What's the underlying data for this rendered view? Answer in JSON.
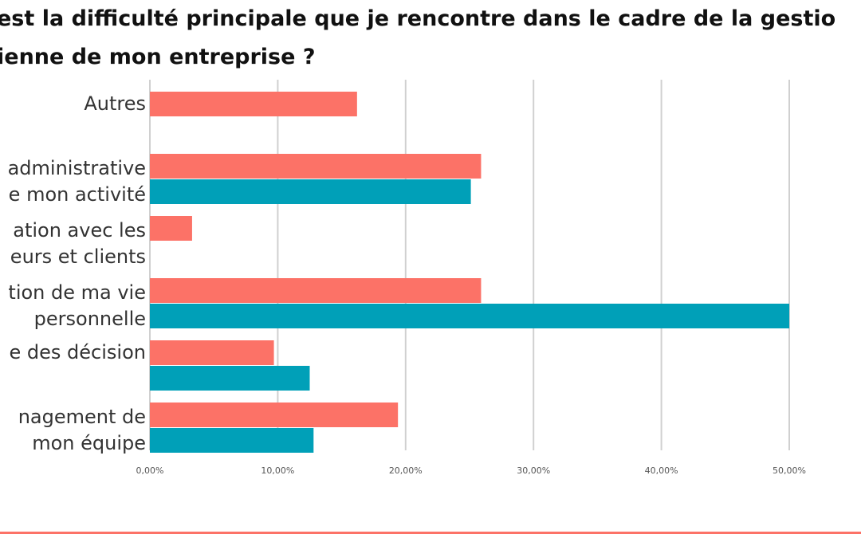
{
  "chart_data": {
    "type": "bar",
    "orientation": "horizontal",
    "title_lines": [
      "est la difficulté principale que je rencontre dans le cadre de la gestio",
      "ienne de mon entreprise ?"
    ],
    "categories": [
      {
        "lines": [
          "Autres"
        ]
      },
      {
        "lines": [
          "administrative",
          "e  mon activité"
        ]
      },
      {
        "lines": [
          "ation avec les",
          "eurs et clients"
        ]
      },
      {
        "lines": [
          "tion de ma vie",
          "personnelle"
        ]
      },
      {
        "lines": [
          "e des décision"
        ]
      },
      {
        "lines": [
          "nagement de",
          "mon équipe"
        ]
      }
    ],
    "series": [
      {
        "color": "#fc7267",
        "values": [
          16.2,
          25.9,
          3.3,
          25.9,
          9.7,
          19.4
        ]
      },
      {
        "color": "#00a0b8",
        "values": [
          null,
          25.1,
          null,
          50.0,
          12.5,
          12.8
        ]
      }
    ],
    "xlim": [
      0,
      50
    ],
    "x_ticks": [
      "0,00%",
      "10,00%",
      "20,00%",
      "30,00%",
      "40,00%",
      "50,00%"
    ],
    "grid": true,
    "legend": "none"
  },
  "colors": {
    "grid": "#d0d0d0",
    "tick_text": "#555555",
    "category_text": "#333333",
    "bottom_rule": "#fc7267"
  }
}
